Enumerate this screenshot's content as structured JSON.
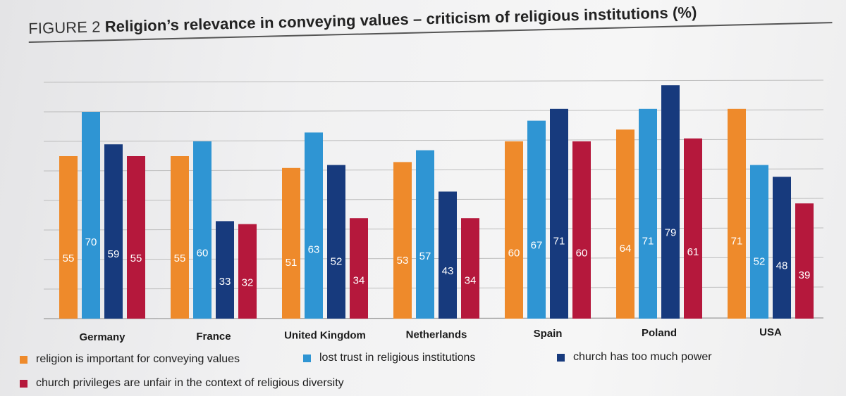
{
  "figure": {
    "label": "FIGURE 2",
    "title": "Religion’s relevance in conveying values – criticism of religious institutions (%)"
  },
  "colors": {
    "orange": "#ee8a2b",
    "lightblue": "#2f95d3",
    "navy": "#173a7d",
    "red": "#b5183c",
    "grid": "#bdbdbd"
  },
  "legend": [
    {
      "label": "religion is important for conveying values",
      "color": "#ee8a2b"
    },
    {
      "label": "lost trust in religious institutions",
      "color": "#2f95d3"
    },
    {
      "label": "church has too much power",
      "color": "#173a7d"
    },
    {
      "label": "church privileges are unfair in the context of religious diversity",
      "color": "#b5183c"
    }
  ],
  "chart_data": {
    "type": "bar",
    "title": "Religion’s relevance in conveying values – criticism of religious institutions (%)",
    "xlabel": "",
    "ylabel": "",
    "ylim": [
      0,
      85
    ],
    "grid": true,
    "legend_position": "bottom",
    "categories": [
      "Germany",
      "France",
      "United Kingdom",
      "Netherlands",
      "Spain",
      "Poland",
      "USA"
    ],
    "series": [
      {
        "name": "religion is important for conveying values",
        "color": "#ee8a2b",
        "values": [
          55,
          55,
          51,
          53,
          60,
          64,
          71
        ]
      },
      {
        "name": "lost trust in religious institutions",
        "color": "#2f95d3",
        "values": [
          70,
          60,
          63,
          57,
          67,
          71,
          52
        ]
      },
      {
        "name": "church has too much power",
        "color": "#173a7d",
        "values": [
          59,
          33,
          52,
          43,
          71,
          79,
          48
        ]
      },
      {
        "name": "church privileges are unfair in the context of religious diversity",
        "color": "#b5183c",
        "values": [
          55,
          32,
          34,
          34,
          60,
          61,
          39
        ]
      }
    ]
  }
}
